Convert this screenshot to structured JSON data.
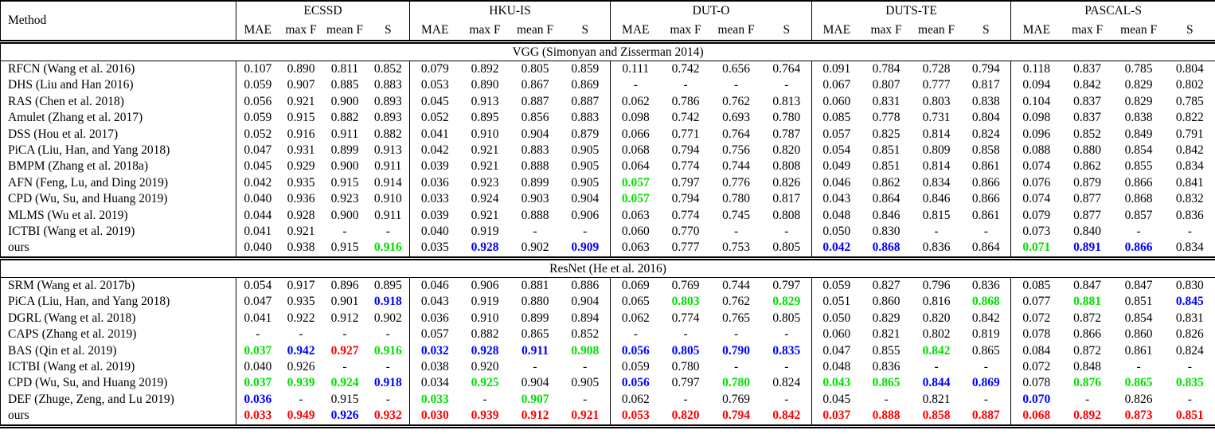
{
  "table": {
    "method_header": "Method",
    "datasets": [
      "ECSSD",
      "HKU-IS",
      "DUT-O",
      "DUTS-TE",
      "PASCAL-S"
    ],
    "metrics": [
      "MAE",
      "max F",
      "mean F",
      "S"
    ],
    "colors": {
      "best": "#FF0000",
      "second": "#0000FF",
      "third": "#00E000",
      "plain": "#000000"
    },
    "sections": [
      {
        "title": "VGG (Simonyan and Zisserman 2014)",
        "rows": [
          {
            "method": "RFCN (Wang et al. 2016)",
            "cells": [
              "0.107",
              "0.890",
              "0.811",
              "0.852",
              "0.079",
              "0.892",
              "0.805",
              "0.859",
              "0.111",
              "0.742",
              "0.656",
              "0.764",
              "0.091",
              "0.784",
              "0.728",
              "0.794",
              "0.118",
              "0.837",
              "0.785",
              "0.804"
            ]
          },
          {
            "method": "DHS (Liu and Han 2016)",
            "cells": [
              "0.059",
              "0.907",
              "0.885",
              "0.883",
              "0.053",
              "0.890",
              "0.867",
              "0.869",
              "-",
              "-",
              "-",
              "-",
              "0.067",
              "0.807",
              "0.777",
              "0.817",
              "0.094",
              "0.842",
              "0.829",
              "0.802"
            ]
          },
          {
            "method": "RAS (Chen et al. 2018)",
            "cells": [
              "0.056",
              "0.921",
              "0.900",
              "0.893",
              "0.045",
              "0.913",
              "0.887",
              "0.887",
              "0.062",
              "0.786",
              "0.762",
              "0.813",
              "0.060",
              "0.831",
              "0.803",
              "0.838",
              "0.104",
              "0.837",
              "0.829",
              "0.785"
            ]
          },
          {
            "method": "Amulet (Zhang et al. 2017)",
            "cells": [
              "0.059",
              "0.915",
              "0.882",
              "0.893",
              "0.052",
              "0.895",
              "0.856",
              "0.883",
              "0.098",
              "0.742",
              "0.693",
              "0.780",
              "0.085",
              "0.778",
              "0.731",
              "0.804",
              "0.098",
              "0.837",
              "0.838",
              "0.822"
            ]
          },
          {
            "method": "DSS (Hou et al. 2017)",
            "cells": [
              "0.052",
              "0.916",
              "0.911",
              "0.882",
              "0.041",
              "0.910",
              "0.904",
              "0.879",
              "0.066",
              "0.771",
              "0.764",
              "0.787",
              "0.057",
              "0.825",
              "0.814",
              "0.824",
              "0.096",
              "0.852",
              "0.849",
              "0.791"
            ]
          },
          {
            "method": "PiCA (Liu, Han, and Yang 2018)",
            "cells": [
              "0.047",
              "0.931",
              "0.899",
              "0.913",
              "0.042",
              "0.921",
              "0.883",
              "0.905",
              "0.068",
              "0.794",
              "0.756",
              "0.820",
              "0.054",
              "0.851",
              "0.809",
              "0.858",
              "0.088",
              "0.880",
              "0.854",
              "0.842"
            ]
          },
          {
            "method": "BMPM (Zhang et al. 2018a)",
            "cells": [
              "0.045",
              "0.929",
              "0.900",
              "0.911",
              "0.039",
              "0.921",
              "0.888",
              "0.905",
              "0.064",
              "0.774",
              "0.744",
              "0.808",
              "0.049",
              "0.851",
              "0.814",
              "0.861",
              "0.074",
              "0.862",
              "0.855",
              "0.834"
            ]
          },
          {
            "method": "AFN (Feng, Lu, and Ding 2019)",
            "cells": [
              "0.042",
              "0.935",
              "0.915",
              "0.914",
              "0.036",
              "0.923",
              "0.899",
              "0.905",
              "0.057",
              "0.797",
              "0.776",
              "0.826",
              "0.046",
              "0.862",
              "0.834",
              "0.866",
              "0.076",
              "0.879",
              "0.866",
              "0.841"
            ],
            "marks": [
              "",
              "",
              "",
              "",
              "",
              "",
              "",
              "",
              "g",
              "",
              "",
              "",
              "",
              "",
              "",
              "",
              "",
              "",
              "",
              ""
            ]
          },
          {
            "method": "CPD (Wu, Su, and Huang 2019)",
            "cells": [
              "0.040",
              "0.936",
              "0.923",
              "0.910",
              "0.033",
              "0.924",
              "0.903",
              "0.904",
              "0.057",
              "0.794",
              "0.780",
              "0.817",
              "0.043",
              "0.864",
              "0.846",
              "0.866",
              "0.074",
              "0.877",
              "0.868",
              "0.832"
            ],
            "marks": [
              "",
              "",
              "",
              "",
              "",
              "",
              "",
              "",
              "g",
              "",
              "",
              "",
              "",
              "",
              "",
              "",
              "",
              "",
              "",
              ""
            ]
          },
          {
            "method": "MLMS (Wu et al. 2019)",
            "cells": [
              "0.044",
              "0.928",
              "0.900",
              "0.911",
              "0.039",
              "0.921",
              "0.888",
              "0.906",
              "0.063",
              "0.774",
              "0.745",
              "0.808",
              "0.048",
              "0.846",
              "0.815",
              "0.861",
              "0.079",
              "0.877",
              "0.857",
              "0.836"
            ]
          },
          {
            "method": "ICTBI (Wang et al. 2019)",
            "cells": [
              "0.041",
              "0.921",
              "-",
              "-",
              "0.040",
              "0.919",
              "-",
              "-",
              "0.060",
              "0.770",
              "-",
              "-",
              "0.050",
              "0.830",
              "-",
              "-",
              "0.073",
              "0.840",
              "-",
              "-"
            ]
          },
          {
            "method": "ours",
            "cells": [
              "0.040",
              "0.938",
              "0.915",
              "0.916",
              "0.035",
              "0.928",
              "0.902",
              "0.909",
              "0.063",
              "0.777",
              "0.753",
              "0.805",
              "0.042",
              "0.868",
              "0.836",
              "0.864",
              "0.071",
              "0.891",
              "0.866",
              "0.834"
            ],
            "marks": [
              "",
              "",
              "",
              "g",
              "",
              "b",
              "",
              "b",
              "",
              "",
              "",
              "",
              "b",
              "b",
              "",
              "",
              "g",
              "b",
              "b",
              ""
            ]
          }
        ]
      },
      {
        "title": "ResNet (He et al. 2016)",
        "rows": [
          {
            "method": "SRM (Wang et al. 2017b)",
            "cells": [
              "0.054",
              "0.917",
              "0.896",
              "0.895",
              "0.046",
              "0.906",
              "0.881",
              "0.886",
              "0.069",
              "0.769",
              "0.744",
              "0.797",
              "0.059",
              "0.827",
              "0.796",
              "0.836",
              "0.085",
              "0.847",
              "0.847",
              "0.830"
            ]
          },
          {
            "method": "PiCA (Liu, Han, and Yang 2018)",
            "cells": [
              "0.047",
              "0.935",
              "0.901",
              "0.918",
              "0.043",
              "0.919",
              "0.880",
              "0.904",
              "0.065",
              "0.803",
              "0.762",
              "0.829",
              "0.051",
              "0.860",
              "0.816",
              "0.868",
              "0.077",
              "0.881",
              "0.851",
              "0.845"
            ],
            "marks": [
              "",
              "",
              "",
              "b",
              "",
              "",
              "",
              "",
              "",
              "g",
              "",
              "g",
              "",
              "",
              "",
              "g",
              "",
              "g",
              "",
              "b"
            ]
          },
          {
            "method": "DGRL (Wang et al. 2018)",
            "cells": [
              "0.041",
              "0.922",
              "0.912",
              "0.902",
              "0.036",
              "0.910",
              "0.899",
              "0.894",
              "0.062",
              "0.774",
              "0.765",
              "0.805",
              "0.050",
              "0.829",
              "0.820",
              "0.842",
              "0.072",
              "0.872",
              "0.854",
              "0.831"
            ]
          },
          {
            "method": "CAPS (Zhang et al. 2019)",
            "cells": [
              "-",
              "-",
              "-",
              "-",
              "0.057",
              "0.882",
              "0.865",
              "0.852",
              "-",
              "-",
              "-",
              "-",
              "0.060",
              "0.821",
              "0.802",
              "0.819",
              "0.078",
              "0.866",
              "0.860",
              "0.826"
            ]
          },
          {
            "method": "BAS (Qin et al. 2019)",
            "cells": [
              "0.037",
              "0.942",
              "0.927",
              "0.916",
              "0.032",
              "0.928",
              "0.911",
              "0.908",
              "0.056",
              "0.805",
              "0.790",
              "0.835",
              "0.047",
              "0.855",
              "0.842",
              "0.865",
              "0.084",
              "0.872",
              "0.861",
              "0.824"
            ],
            "marks": [
              "g",
              "b",
              "r",
              "g",
              "b",
              "b",
              "b",
              "g",
              "b",
              "b",
              "b",
              "b",
              "",
              "",
              "g",
              "",
              "",
              "",
              "",
              ""
            ]
          },
          {
            "method": "ICTBI (Wang et al. 2019)",
            "cells": [
              "0.040",
              "0.926",
              "-",
              "-",
              "0.038",
              "0.920",
              "-",
              "-",
              "0.059",
              "0.780",
              "-",
              "-",
              "0.048",
              "0.836",
              "-",
              "-",
              "0.072",
              "0.848",
              "-",
              "-"
            ]
          },
          {
            "method": "CPD (Wu, Su, and Huang 2019)",
            "cells": [
              "0.037",
              "0.939",
              "0.924",
              "0.918",
              "0.034",
              "0.925",
              "0.904",
              "0.905",
              "0.056",
              "0.797",
              "0.780",
              "0.824",
              "0.043",
              "0.865",
              "0.844",
              "0.869",
              "0.078",
              "0.876",
              "0.865",
              "0.835"
            ],
            "marks": [
              "g",
              "g",
              "g",
              "b",
              "",
              "g",
              "",
              "",
              "b",
              "",
              "g",
              "",
              "g",
              "g",
              "b",
              "b",
              "",
              "g",
              "g",
              "g"
            ]
          },
          {
            "method": "DEF (Zhuge, Zeng, and Lu 2019)",
            "cells": [
              "0.036",
              "-",
              "0.915",
              "-",
              "0.033",
              "-",
              "0.907",
              "-",
              "0.062",
              "-",
              "0.769",
              "-",
              "0.045",
              "-",
              "0.821",
              "-",
              "0.070",
              "-",
              "0.826",
              "-"
            ],
            "marks": [
              "b",
              "",
              "",
              "",
              "g",
              "",
              "g",
              "",
              "",
              "",
              "",
              "",
              "",
              "",
              "",
              "",
              "b",
              "",
              "",
              ""
            ]
          },
          {
            "method": "ours",
            "cells": [
              "0.033",
              "0.949",
              "0.926",
              "0.932",
              "0.030",
              "0.939",
              "0.912",
              "0.921",
              "0.053",
              "0.820",
              "0.794",
              "0.842",
              "0.037",
              "0.888",
              "0.858",
              "0.887",
              "0.068",
              "0.892",
              "0.873",
              "0.851"
            ],
            "marks": [
              "r",
              "r",
              "b",
              "r",
              "r",
              "r",
              "r",
              "r",
              "r",
              "r",
              "r",
              "r",
              "r",
              "r",
              "r",
              "r",
              "r",
              "r",
              "r",
              "r"
            ]
          }
        ]
      }
    ]
  }
}
